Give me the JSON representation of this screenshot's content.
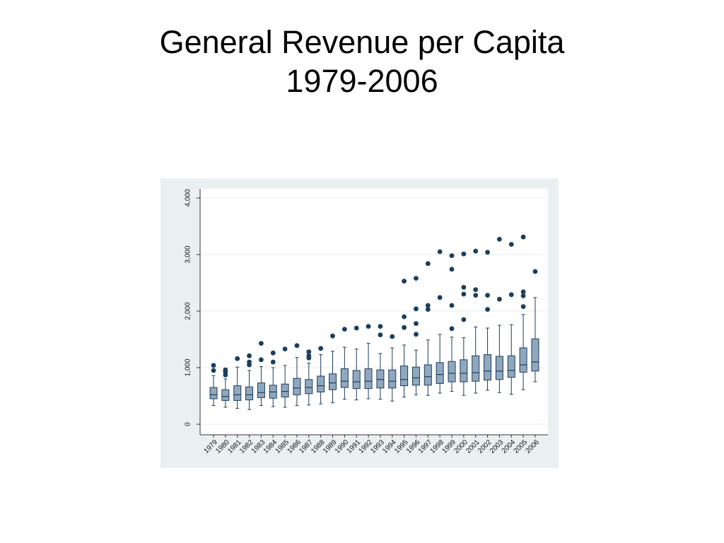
{
  "title": {
    "line1": "General Revenue per Capita",
    "line2": "1979-2006"
  },
  "colors": {
    "panel_bg": "#eaf0f2",
    "plot_bg": "#ffffff",
    "box_fill": "#8fa8bf",
    "box_stroke": "#1e3c5a",
    "outlier": "#1a3e5e",
    "grid": "#e6ecef"
  },
  "chart_data": {
    "type": "box",
    "title": "",
    "xlabel": "",
    "ylabel": "",
    "ylim": [
      0,
      4000
    ],
    "yticks": [
      0,
      1000,
      2000,
      3000,
      4000
    ],
    "ytick_labels": [
      "0",
      "1,000",
      "2,000",
      "3,000",
      "4,000"
    ],
    "grid": true,
    "categories": [
      "1979",
      "1980",
      "1981",
      "1982",
      "1983",
      "1984",
      "1985",
      "1986",
      "1987",
      "1988",
      "1989",
      "1990",
      "1991",
      "1992",
      "1993",
      "1994",
      "1995",
      "1996",
      "1997",
      "1998",
      "1999",
      "2000",
      "2001",
      "2002",
      "2003",
      "2004",
      "2005",
      "2006"
    ],
    "boxes": [
      {
        "min": 330,
        "q1": 450,
        "median": 520,
        "q3": 650,
        "max": 860,
        "outliers": [
          950,
          1040
        ]
      },
      {
        "min": 300,
        "q1": 420,
        "median": 490,
        "q3": 610,
        "max": 800,
        "outliers": [
          870,
          920,
          960
        ]
      },
      {
        "min": 280,
        "q1": 420,
        "median": 520,
        "q3": 680,
        "max": 1010,
        "outliers": [
          1160
        ]
      },
      {
        "min": 260,
        "q1": 430,
        "median": 520,
        "q3": 660,
        "max": 950,
        "outliers": [
          1050,
          1100,
          1210
        ]
      },
      {
        "min": 330,
        "q1": 470,
        "median": 560,
        "q3": 730,
        "max": 1020,
        "outliers": [
          1140,
          1430
        ]
      },
      {
        "min": 310,
        "q1": 460,
        "median": 570,
        "q3": 690,
        "max": 1000,
        "outliers": [
          1100,
          1260
        ]
      },
      {
        "min": 300,
        "q1": 480,
        "median": 580,
        "q3": 710,
        "max": 1040,
        "outliers": [
          1330
        ]
      },
      {
        "min": 330,
        "q1": 520,
        "median": 640,
        "q3": 810,
        "max": 1180,
        "outliers": [
          1390
        ]
      },
      {
        "min": 340,
        "q1": 540,
        "median": 650,
        "q3": 790,
        "max": 1080,
        "outliers": [
          1170,
          1210,
          1280
        ]
      },
      {
        "min": 360,
        "q1": 570,
        "median": 680,
        "q3": 850,
        "max": 1230,
        "outliers": [
          1340
        ]
      },
      {
        "min": 380,
        "q1": 610,
        "median": 730,
        "q3": 890,
        "max": 1290,
        "outliers": [
          1560
        ]
      },
      {
        "min": 440,
        "q1": 650,
        "median": 760,
        "q3": 980,
        "max": 1360,
        "outliers": [
          1680
        ]
      },
      {
        "min": 430,
        "q1": 630,
        "median": 750,
        "q3": 950,
        "max": 1330,
        "outliers": [
          1700
        ]
      },
      {
        "min": 450,
        "q1": 630,
        "median": 760,
        "q3": 980,
        "max": 1430,
        "outliers": [
          1730
        ]
      },
      {
        "min": 440,
        "q1": 640,
        "median": 790,
        "q3": 960,
        "max": 1250,
        "outliers": [
          1580,
          1730
        ]
      },
      {
        "min": 410,
        "q1": 640,
        "median": 760,
        "q3": 960,
        "max": 1350,
        "outliers": [
          1550
        ]
      },
      {
        "min": 480,
        "q1": 680,
        "median": 790,
        "q3": 1030,
        "max": 1400,
        "outliers": [
          1710,
          1900,
          2530
        ]
      },
      {
        "min": 520,
        "q1": 690,
        "median": 820,
        "q3": 1010,
        "max": 1310,
        "outliers": [
          1590,
          1780,
          2040,
          2580
        ]
      },
      {
        "min": 510,
        "q1": 690,
        "median": 840,
        "q3": 1050,
        "max": 1490,
        "outliers": [
          2030,
          2100,
          2840
        ]
      },
      {
        "min": 550,
        "q1": 720,
        "median": 880,
        "q3": 1090,
        "max": 1590,
        "outliers": [
          2240,
          3050
        ]
      },
      {
        "min": 580,
        "q1": 750,
        "median": 900,
        "q3": 1110,
        "max": 1540,
        "outliers": [
          1690,
          2100,
          2740,
          2980
        ]
      },
      {
        "min": 510,
        "q1": 750,
        "median": 900,
        "q3": 1140,
        "max": 1530,
        "outliers": [
          1850,
          2300,
          2420,
          3010
        ]
      },
      {
        "min": 550,
        "q1": 760,
        "median": 910,
        "q3": 1210,
        "max": 1720,
        "outliers": [
          2280,
          2380,
          3060
        ]
      },
      {
        "min": 600,
        "q1": 780,
        "median": 940,
        "q3": 1230,
        "max": 1700,
        "outliers": [
          2030,
          2280,
          3040
        ]
      },
      {
        "min": 560,
        "q1": 790,
        "median": 940,
        "q3": 1200,
        "max": 1750,
        "outliers": [
          2210,
          3270
        ]
      },
      {
        "min": 530,
        "q1": 830,
        "median": 950,
        "q3": 1210,
        "max": 1760,
        "outliers": [
          2290,
          3180
        ]
      },
      {
        "min": 610,
        "q1": 920,
        "median": 1050,
        "q3": 1350,
        "max": 1940,
        "outliers": [
          2080,
          2270,
          2340,
          3310
        ]
      },
      {
        "min": 750,
        "q1": 940,
        "median": 1100,
        "q3": 1510,
        "max": 2240,
        "outliers": [
          2700
        ]
      }
    ]
  }
}
